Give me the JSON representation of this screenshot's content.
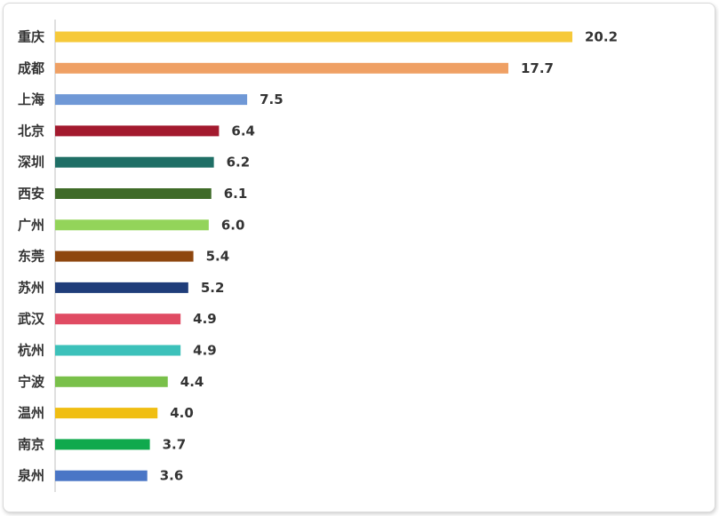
{
  "chart_data": {
    "type": "bar",
    "orientation": "horizontal",
    "categories": [
      "重庆",
      "成都",
      "上海",
      "北京",
      "深圳",
      "西安",
      "广州",
      "东莞",
      "苏州",
      "武汉",
      "杭州",
      "宁波",
      "温州",
      "南京",
      "泉州"
    ],
    "values": [
      20.2,
      17.7,
      7.5,
      6.4,
      6.2,
      6.1,
      6.0,
      5.4,
      5.2,
      4.9,
      4.9,
      4.4,
      4.0,
      3.7,
      3.6
    ],
    "value_labels": [
      "20.2",
      "17.7",
      "7.5",
      "6.4",
      "6.2",
      "6.1",
      "6.0",
      "5.4",
      "5.2",
      "4.9",
      "4.9",
      "4.4",
      "4.0",
      "3.7",
      "3.6"
    ],
    "colors": [
      "#F6C93A",
      "#EFA064",
      "#6F98D6",
      "#A31A2E",
      "#1F6F66",
      "#3F6B28",
      "#93D45A",
      "#8E460E",
      "#1F3D7A",
      "#E04B63",
      "#3CC1BA",
      "#79C04A",
      "#F0BE12",
      "#10A94D",
      "#4A76C6"
    ],
    "title": "",
    "xlabel": "",
    "ylabel": "",
    "xlim": [
      0,
      20.2
    ],
    "grid": false,
    "legend": "none"
  }
}
